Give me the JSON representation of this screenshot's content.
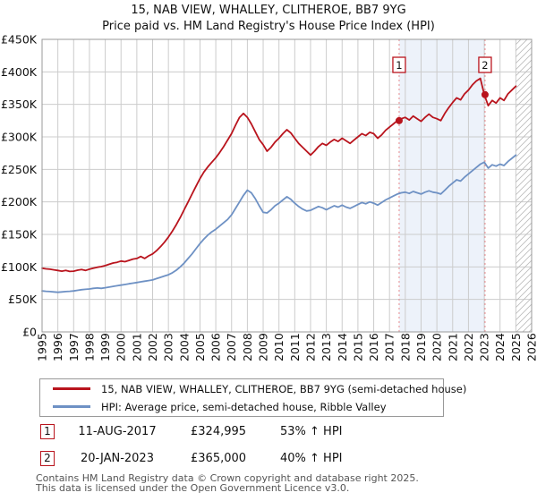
{
  "title": {
    "line1": "15, NAB VIEW, WHALLEY, CLITHEROE, BB7 9YG",
    "line2": "Price paid vs. HM Land Registry's House Price Index (HPI)"
  },
  "chart_data": {
    "type": "line",
    "unit": "GBP_thousands",
    "x_start": 1995,
    "x_step": 0.25,
    "x_axis": {
      "tick_years": [
        1995,
        1996,
        1997,
        1998,
        1999,
        2000,
        2001,
        2002,
        2003,
        2004,
        2005,
        2006,
        2007,
        2008,
        2009,
        2010,
        2011,
        2012,
        2013,
        2014,
        2015,
        2016,
        2017,
        2018,
        2019,
        2020,
        2021,
        2022,
        2023,
        2024,
        2025,
        2026
      ]
    },
    "y_axis": {
      "min": 0,
      "max": 450,
      "tick_step": 50,
      "ticks": [
        "£0",
        "£50K",
        "£100K",
        "£150K",
        "£200K",
        "£250K",
        "£300K",
        "£350K",
        "£400K",
        "£450K"
      ]
    },
    "grid": true,
    "colors": {
      "grid": "#cccccc",
      "border": "#999999",
      "dashed_marker_line": "#e8898c",
      "shade": "#edf2fa",
      "hatch": "#bbbbbb"
    },
    "series": [
      {
        "name": "15, NAB VIEW, WHALLEY, CLITHEROE, BB7 9YG (semi-detached house)",
        "color": "#b9141d",
        "values": [
          98,
          97,
          96.5,
          95.5,
          94.5,
          93.5,
          94.5,
          93,
          93.5,
          95,
          96,
          94.5,
          96.5,
          98,
          99.5,
          100.5,
          102,
          104,
          106,
          107,
          109,
          108,
          110,
          112,
          113,
          116,
          113,
          117,
          120,
          125,
          131,
          138,
          146,
          155,
          165,
          176,
          188,
          200,
          212,
          224,
          236,
          246,
          254,
          261,
          268,
          276,
          285,
          295,
          305,
          318,
          330,
          336,
          330,
          320,
          308,
          296,
          288,
          278,
          284,
          292,
          298,
          305,
          311,
          306,
          298,
          290,
          284,
          278,
          272,
          278,
          285,
          290,
          287,
          292,
          296,
          293,
          298,
          294,
          290,
          295,
          300,
          305,
          302,
          307,
          305,
          298,
          303,
          310,
          315,
          320,
          325,
          328,
          330,
          326,
          332,
          328,
          324,
          330,
          335,
          330,
          328,
          325,
          336,
          345,
          353,
          360,
          357,
          366,
          372,
          380,
          386,
          390,
          365,
          348,
          356,
          352,
          360,
          356,
          366,
          372,
          378
        ]
      },
      {
        "name": "HPI: Average price, semi-detached house, Ribble Valley",
        "color": "#6e91c4",
        "values": [
          63,
          62.5,
          62,
          61.5,
          61,
          61.5,
          62,
          62.5,
          63,
          64,
          65,
          65.5,
          66,
          67,
          67.5,
          67,
          68,
          69,
          70,
          71,
          72,
          73,
          74,
          75,
          76,
          77,
          78,
          79,
          80,
          82,
          84,
          86,
          88,
          91,
          95,
          100,
          106,
          113,
          120,
          128,
          136,
          143,
          149,
          154,
          158,
          163,
          168,
          173,
          180,
          190,
          200,
          210,
          218,
          214,
          205,
          194,
          184,
          183,
          188,
          194,
          198,
          203,
          208,
          204,
          198,
          193,
          189,
          186,
          187,
          190,
          193,
          191,
          188,
          191,
          194,
          192,
          195,
          192,
          190,
          193,
          196,
          199,
          197,
          200,
          198,
          195,
          199,
          203,
          206,
          209,
          212,
          214,
          215,
          213,
          216,
          214,
          212,
          215,
          217,
          215,
          214,
          212,
          218,
          224,
          229,
          234,
          232,
          238,
          243,
          248,
          253,
          258,
          261,
          252,
          257,
          255,
          258,
          256,
          262,
          267,
          272
        ]
      }
    ],
    "markers": [
      {
        "n": "1",
        "year": 2017.61,
        "value": 325
      },
      {
        "n": "2",
        "year": 2023.05,
        "value": 365
      }
    ],
    "shaded_span": {
      "from": 2017.61,
      "to": 2023.05
    },
    "hatch_span": {
      "from": 2025.0,
      "to": 2026
    }
  },
  "legend": [
    {
      "label": "15, NAB VIEW, WHALLEY, CLITHEROE, BB7 9YG (semi-detached house)",
      "color": "#b9141d"
    },
    {
      "label": "HPI: Average price, semi-detached house, Ribble Valley",
      "color": "#6e91c4"
    }
  ],
  "annotations": [
    {
      "num": "1",
      "date": "11-AUG-2017",
      "price": "£324,995",
      "vs_hpi": "53% ↑ HPI"
    },
    {
      "num": "2",
      "date": "20-JAN-2023",
      "price": "£365,000",
      "vs_hpi": "40% ↑ HPI"
    }
  ],
  "footer": {
    "line1": "Contains HM Land Registry data © Crown copyright and database right 2025.",
    "line2": "This data is licensed under the Open Government Licence v3.0."
  }
}
